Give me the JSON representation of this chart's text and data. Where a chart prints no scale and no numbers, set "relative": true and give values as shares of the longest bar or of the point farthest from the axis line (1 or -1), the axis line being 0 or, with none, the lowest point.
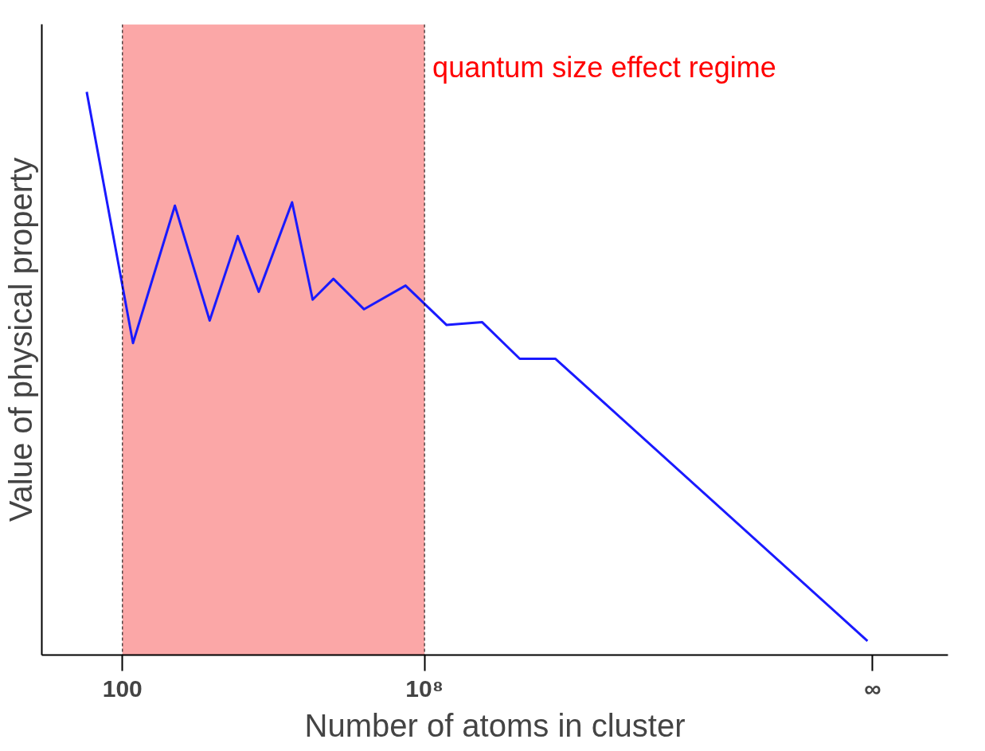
{
  "chart_data": {
    "type": "line",
    "relative": true,
    "log": "x",
    "xlabel": "Number of atoms in cluster",
    "ylabel": "Value of physical property",
    "x": [
      19.5,
      162,
      1100,
      5400,
      19500,
      51000,
      234000,
      600000,
      1550000,
      6300000,
      42000000,
      275000000,
      1400000000,
      7800000000,
      40000000000,
      63000000000000000
    ],
    "series": [
      {
        "color": "#1a1aff",
        "values": [
          1,
          0.554,
          0.798,
          0.594,
          0.744,
          0.645,
          0.804,
          0.631,
          0.668,
          0.614,
          0.656,
          0.586,
          0.591,
          0.526,
          0.526,
          0.025
        ]
      }
    ],
    "xlim": [
      2.5,
      2500000000000000000
    ],
    "xticks": [
      100,
      {
        "value": 100000000,
        "label": "10⁸"
      },
      {
        "value": 80000000000000000,
        "label": "∞"
      }
    ],
    "tick_labels": "x",
    "grid": false,
    "marker": "none",
    "line_style": "solid",
    "bands": [
      {
        "axis": "x",
        "from": 100,
        "to": 100000000,
        "label": "quantum size effect regime",
        "color": "#fba7a7"
      }
    ],
    "ref_lines": [
      {
        "axis": "x",
        "value": 100,
        "line_style": "dashed"
      },
      {
        "axis": "x",
        "value": 100000000,
        "line_style": "dashed"
      }
    ]
  }
}
